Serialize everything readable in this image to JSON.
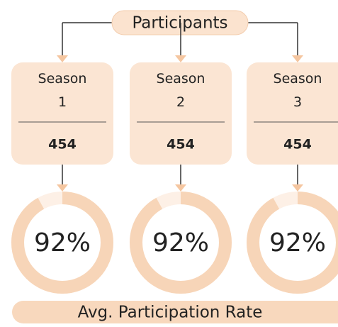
{
  "header": {
    "title": "Participants"
  },
  "seasons": [
    {
      "label": "Season 1",
      "value": "454",
      "rate": {
        "value": 92,
        "label": "92%"
      }
    },
    {
      "label": "Season 2",
      "value": "454",
      "rate": {
        "value": 92,
        "label": "92%"
      }
    },
    {
      "label": "Season 3",
      "value": "454",
      "rate": {
        "value": 92,
        "label": "92%"
      }
    }
  ],
  "footer": {
    "title": "Avg. Participation Rate"
  }
}
